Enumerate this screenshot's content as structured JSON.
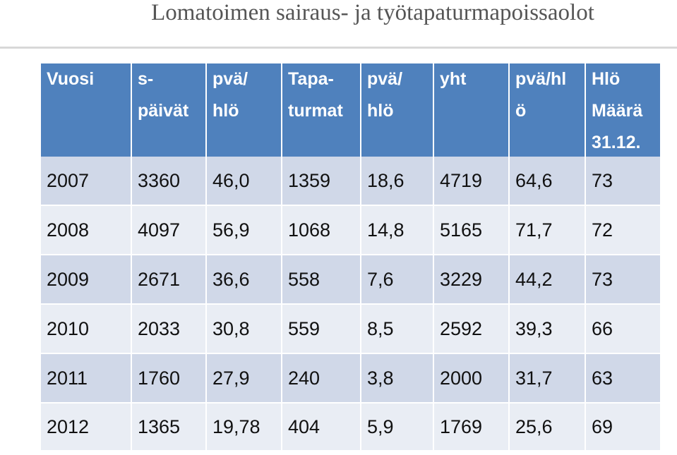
{
  "title": "Lomatoimen sairaus- ja työtapaturmapoissaolot",
  "table": {
    "header": [
      [
        "Vuosi"
      ],
      [
        "s-",
        "päivät"
      ],
      [
        "pvä/",
        "hlö"
      ],
      [
        "Tapa-",
        "turmat"
      ],
      [
        "pvä/",
        "hlö"
      ],
      [
        "yht"
      ],
      [
        "pvä/hl",
        "ö"
      ],
      [
        "Hlö",
        "Määrä",
        "31.12."
      ]
    ],
    "rows": [
      [
        "2007",
        "3360",
        "46,0",
        "1359",
        "18,6",
        "4719",
        "64,6",
        "73"
      ],
      [
        "2008",
        "4097",
        "56,9",
        "1068",
        "14,8",
        "5165",
        "71,7",
        "72"
      ],
      [
        "2009",
        "2671",
        "36,6",
        "558",
        "7,6",
        "3229",
        "44,2",
        "73"
      ],
      [
        "2010",
        "2033",
        "30,8",
        "559",
        "8,5",
        "2592",
        "39,3",
        "66"
      ],
      [
        "2011",
        "1760",
        "27,9",
        "240",
        "3,8",
        "2000",
        "31,7",
        "63"
      ],
      [
        "2012",
        "1365",
        "19,78",
        "404",
        "5,9",
        "1769",
        "25,6",
        "69"
      ]
    ]
  }
}
